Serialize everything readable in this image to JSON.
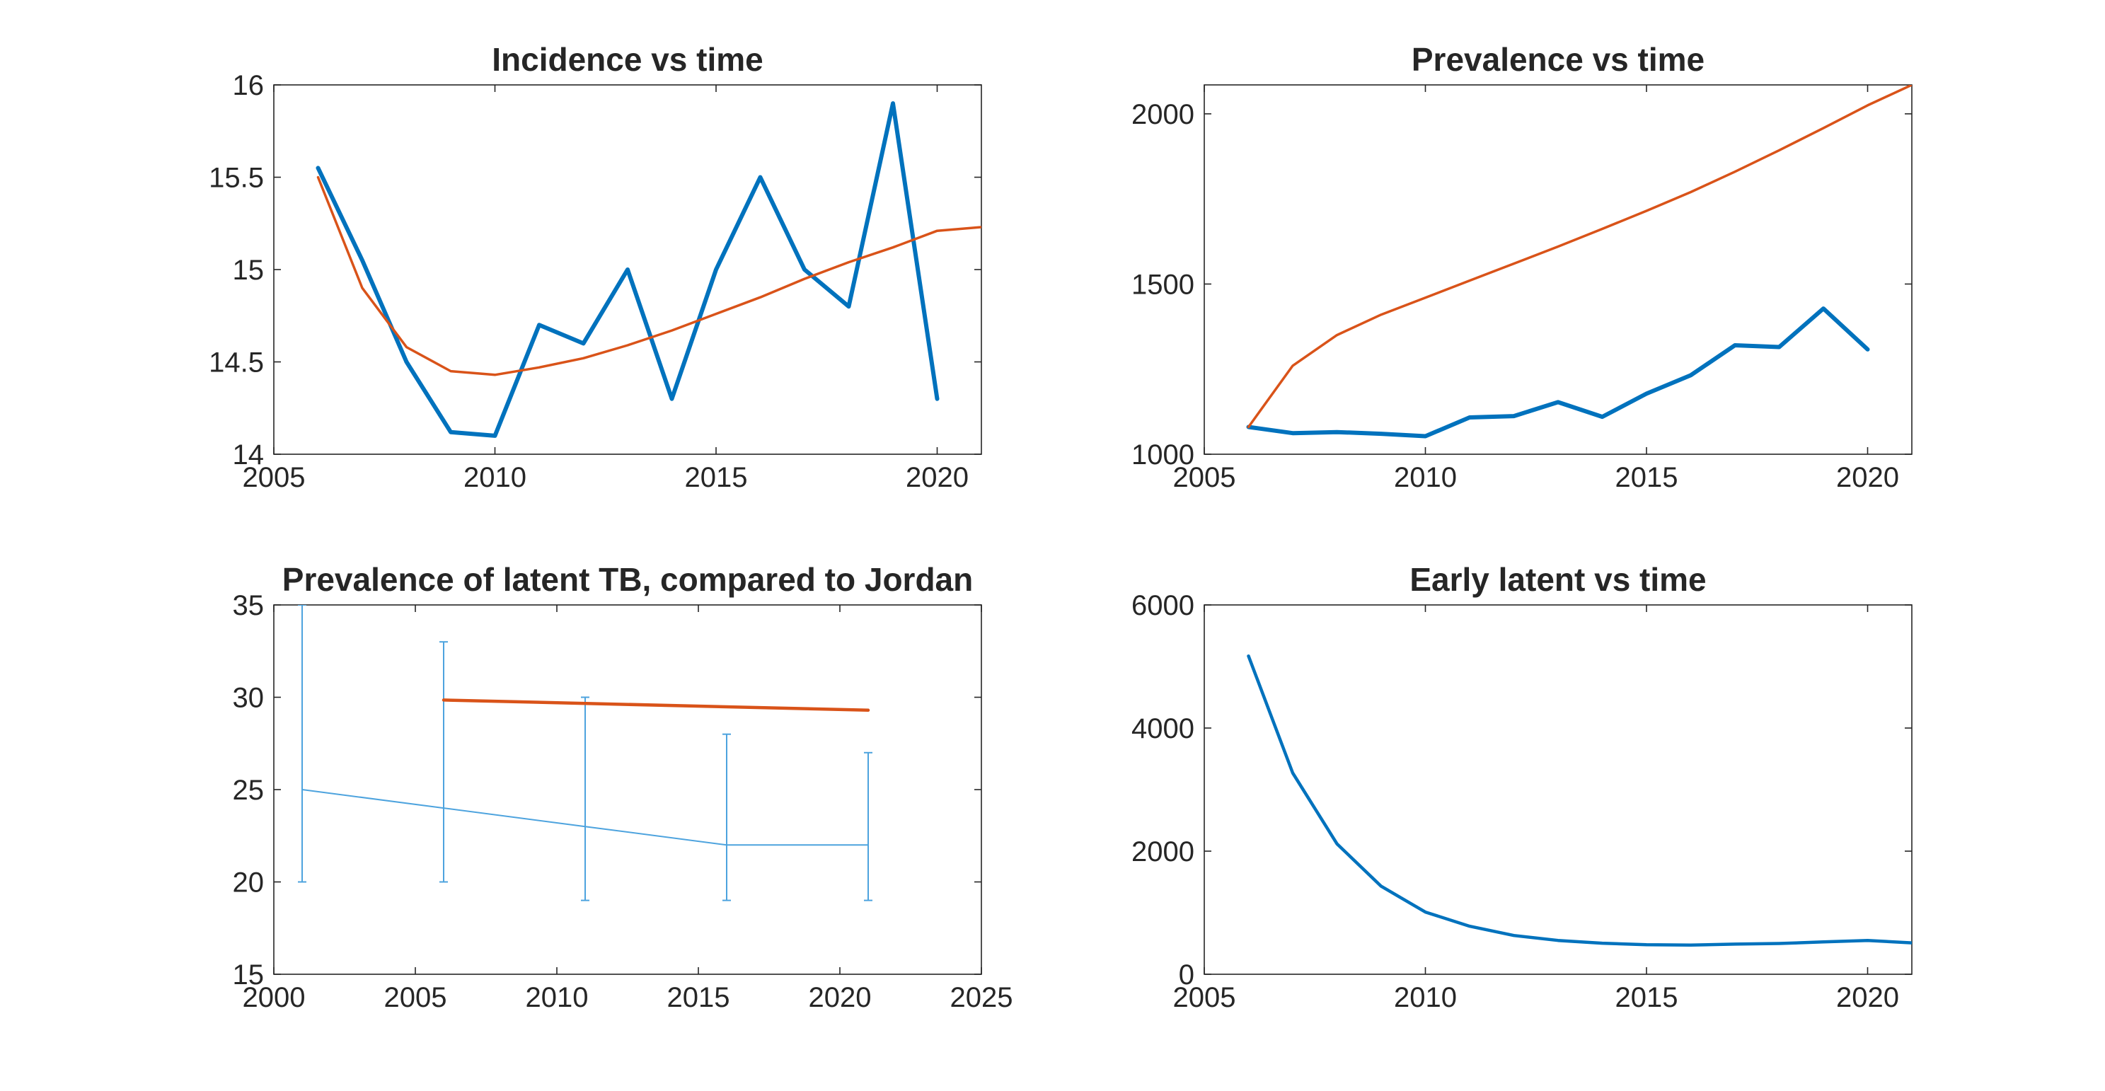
{
  "colors": {
    "blue": "#0072BD",
    "orange": "#D95319",
    "errorbar_blue": "#4DA3DE",
    "axis": "#262626",
    "background": "#FFFFFF"
  },
  "chart_data": [
    {
      "type": "line",
      "title": "Incidence vs time",
      "xlabel": "",
      "ylabel": "",
      "xlim": [
        2005,
        2021
      ],
      "ylim": [
        14,
        16
      ],
      "xticks": [
        2005,
        2010,
        2015,
        2020
      ],
      "yticks": [
        14,
        14.5,
        15,
        15.5,
        16
      ],
      "ytick_labels": [
        "14",
        "14.5",
        "15",
        "15.5",
        "16"
      ],
      "series": [
        {
          "color": "blue",
          "width": 6,
          "x": [
            2006,
            2007,
            2008,
            2009,
            2010,
            2011,
            2012,
            2013,
            2014,
            2015,
            2016,
            2017,
            2018,
            2019,
            2020
          ],
          "y": [
            15.55,
            15.05,
            14.5,
            14.12,
            14.1,
            14.7,
            14.6,
            15.0,
            14.3,
            15.0,
            15.5,
            15.0,
            14.8,
            15.9,
            14.3
          ]
        },
        {
          "color": "orange",
          "width": 3.5,
          "x": [
            2006,
            2007,
            2008,
            2009,
            2010,
            2011,
            2012,
            2013,
            2014,
            2015,
            2016,
            2017,
            2018,
            2019,
            2020,
            2021
          ],
          "y": [
            15.5,
            14.9,
            14.58,
            14.45,
            14.43,
            14.47,
            14.52,
            14.59,
            14.67,
            14.76,
            14.85,
            14.95,
            15.04,
            15.12,
            15.21,
            15.23
          ]
        }
      ]
    },
    {
      "type": "line",
      "title": "Prevalence vs time",
      "xlabel": "",
      "ylabel": "",
      "xlim": [
        2005,
        2021
      ],
      "ylim": [
        1000,
        2085
      ],
      "xticks": [
        2005,
        2010,
        2015,
        2020
      ],
      "yticks": [
        1000,
        1500,
        2000
      ],
      "ytick_labels": [
        "1000",
        "1500",
        "2000"
      ],
      "series": [
        {
          "color": "blue",
          "width": 6,
          "x": [
            2006,
            2007,
            2008,
            2009,
            2010,
            2011,
            2012,
            2013,
            2014,
            2015,
            2016,
            2017,
            2018,
            2019,
            2020
          ],
          "y": [
            1080,
            1062,
            1065,
            1060,
            1053,
            1108,
            1112,
            1153,
            1110,
            1178,
            1232,
            1320,
            1315,
            1428,
            1308
          ]
        },
        {
          "color": "orange",
          "width": 3.5,
          "x": [
            2006,
            2007,
            2008,
            2009,
            2010,
            2011,
            2012,
            2013,
            2014,
            2015,
            2016,
            2017,
            2018,
            2019,
            2020,
            2021
          ],
          "y": [
            1080,
            1260,
            1350,
            1410,
            1460,
            1510,
            1560,
            1610,
            1662,
            1715,
            1770,
            1830,
            1893,
            1958,
            2025,
            2085
          ]
        }
      ]
    },
    {
      "type": "line",
      "title": "Prevalence of latent TB, compared to Jordan",
      "xlabel": "",
      "ylabel": "",
      "xlim": [
        2000,
        2025
      ],
      "ylim": [
        15,
        35
      ],
      "xticks": [
        2000,
        2005,
        2010,
        2015,
        2020,
        2025
      ],
      "yticks": [
        15,
        20,
        25,
        30,
        35
      ],
      "ytick_labels": [
        "15",
        "20",
        "25",
        "30",
        "35"
      ],
      "series": [
        {
          "color": "errorbar_blue",
          "width": 2,
          "errorbar": true,
          "x": [
            2001,
            2006,
            2011,
            2016,
            2021
          ],
          "y": [
            25,
            24,
            23,
            22,
            22
          ],
          "lower": [
            20,
            20,
            19,
            19,
            19
          ],
          "upper": [
            35,
            33,
            30,
            28,
            27
          ]
        },
        {
          "color": "orange",
          "width": 4.5,
          "x": [
            2006,
            2021
          ],
          "y": [
            29.85,
            29.3
          ]
        }
      ]
    },
    {
      "type": "line",
      "title": "Early latent vs time",
      "xlabel": "",
      "ylabel": "",
      "xlim": [
        2005,
        2021
      ],
      "ylim": [
        0,
        6000
      ],
      "xticks": [
        2005,
        2010,
        2015,
        2020
      ],
      "yticks": [
        0,
        2000,
        4000,
        6000
      ],
      "ytick_labels": [
        "0",
        "2000",
        "4000",
        "6000"
      ],
      "series": [
        {
          "color": "blue",
          "width": 4.5,
          "x": [
            2006,
            2007,
            2008,
            2009,
            2010,
            2011,
            2012,
            2013,
            2014,
            2015,
            2016,
            2017,
            2018,
            2019,
            2020,
            2021
          ],
          "y": [
            5170,
            3270,
            2120,
            1430,
            1010,
            780,
            630,
            550,
            505,
            480,
            475,
            490,
            500,
            525,
            550,
            510
          ]
        }
      ]
    }
  ]
}
